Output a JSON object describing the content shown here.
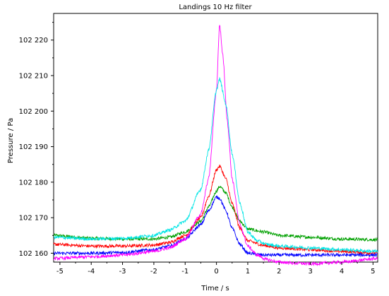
{
  "chart_data": {
    "type": "line",
    "title": "Landings 10 Hz filter",
    "xlabel": "Time / s",
    "ylabel": "Pressure / Pa",
    "xlim": [
      -5.2,
      5.15
    ],
    "ylim": [
      102157.5,
      102227.5
    ],
    "grid": false,
    "legend": "none",
    "x_ticks": [
      -5,
      -4,
      -3,
      -2,
      -1,
      0,
      1,
      2,
      3,
      4,
      5
    ],
    "x_tick_labels": [
      "-5",
      "-4",
      "-3",
      "-2",
      "-1",
      "0",
      "1",
      "2",
      "3",
      "4",
      "5"
    ],
    "y_ticks": [
      102160,
      102170,
      102180,
      102190,
      102200,
      102210,
      102220
    ],
    "y_tick_labels": [
      "102 160",
      "102 170",
      "102 180",
      "102 190",
      "102 200",
      "102 210",
      "102 220"
    ],
    "series": [
      {
        "color": "#00a000",
        "x": [
          -5.2,
          -4,
          -3,
          -2,
          -1.5,
          -1,
          -0.5,
          -0.25,
          0,
          0.1,
          0.3,
          0.5,
          0.75,
          1,
          1.5,
          2,
          3,
          4,
          5.15
        ],
        "y": [
          102165,
          102164.2,
          102164,
          102164,
          102164.5,
          102166,
          102169,
          102173,
          102177.5,
          102178.8,
          102177,
          102173,
          102169,
          102166.8,
          102166,
          102165,
          102164.5,
          102164,
          102163.8
        ]
      },
      {
        "color": "#ff0000",
        "x": [
          -5.2,
          -4,
          -3,
          -2,
          -1.5,
          -1,
          -0.5,
          -0.25,
          0,
          0.1,
          0.3,
          0.5,
          0.75,
          1,
          1.5,
          2,
          3,
          4,
          5.15
        ],
        "y": [
          102162.5,
          102162,
          102162,
          102162.3,
          102163,
          102165,
          102170,
          102176,
          102183.5,
          102184.5,
          102181,
          102174,
          102167,
          102163.5,
          102162.2,
          102161.5,
          102161,
          102160.5,
          102160
        ]
      },
      {
        "color": "#0000ff",
        "x": [
          -5.2,
          -4,
          -3,
          -2,
          -1.5,
          -1,
          -0.5,
          -0.25,
          0,
          0.1,
          0.3,
          0.5,
          0.75,
          1,
          1.5,
          2,
          3,
          4,
          5.15
        ],
        "y": [
          102160,
          102160,
          102160.2,
          102161,
          102162,
          102164,
          102168,
          102172,
          102175.8,
          102175.5,
          102172,
          102167,
          102162.5,
          102160,
          102159.5,
          102159.5,
          102159.5,
          102159.5,
          102159.5
        ]
      },
      {
        "color": "#ff00ff",
        "x": [
          -5.2,
          -4,
          -3,
          -2,
          -1.5,
          -1,
          -0.5,
          -0.25,
          0,
          0.1,
          0.2,
          0.35,
          0.5,
          0.75,
          1,
          1.3,
          1.6,
          2,
          2.5,
          3,
          4,
          5.15
        ],
        "y": [
          102158.5,
          102159,
          102159.5,
          102160.5,
          102161.5,
          102164,
          102171,
          102181,
          102206,
          102224.5,
          102216,
          102197,
          102181,
          102168,
          102162,
          102159.5,
          102158.2,
          102157.5,
          102157.2,
          102157,
          102157.5,
          102158.5
        ]
      },
      {
        "color": "#00e5e5",
        "x": [
          -5.2,
          -4,
          -3,
          -2,
          -1.5,
          -1,
          -0.5,
          -0.25,
          0,
          0.1,
          0.3,
          0.5,
          0.75,
          1,
          1.3,
          1.6,
          2,
          3,
          4,
          5.15
        ],
        "y": [
          102164.5,
          102164,
          102164.2,
          102165,
          102166.5,
          102169,
          102178,
          102189,
          102206,
          102209,
          102202,
          102188,
          102174,
          102166,
          102163.5,
          102162.5,
          102162,
          102161.5,
          102161,
          102160.5
        ]
      }
    ]
  }
}
